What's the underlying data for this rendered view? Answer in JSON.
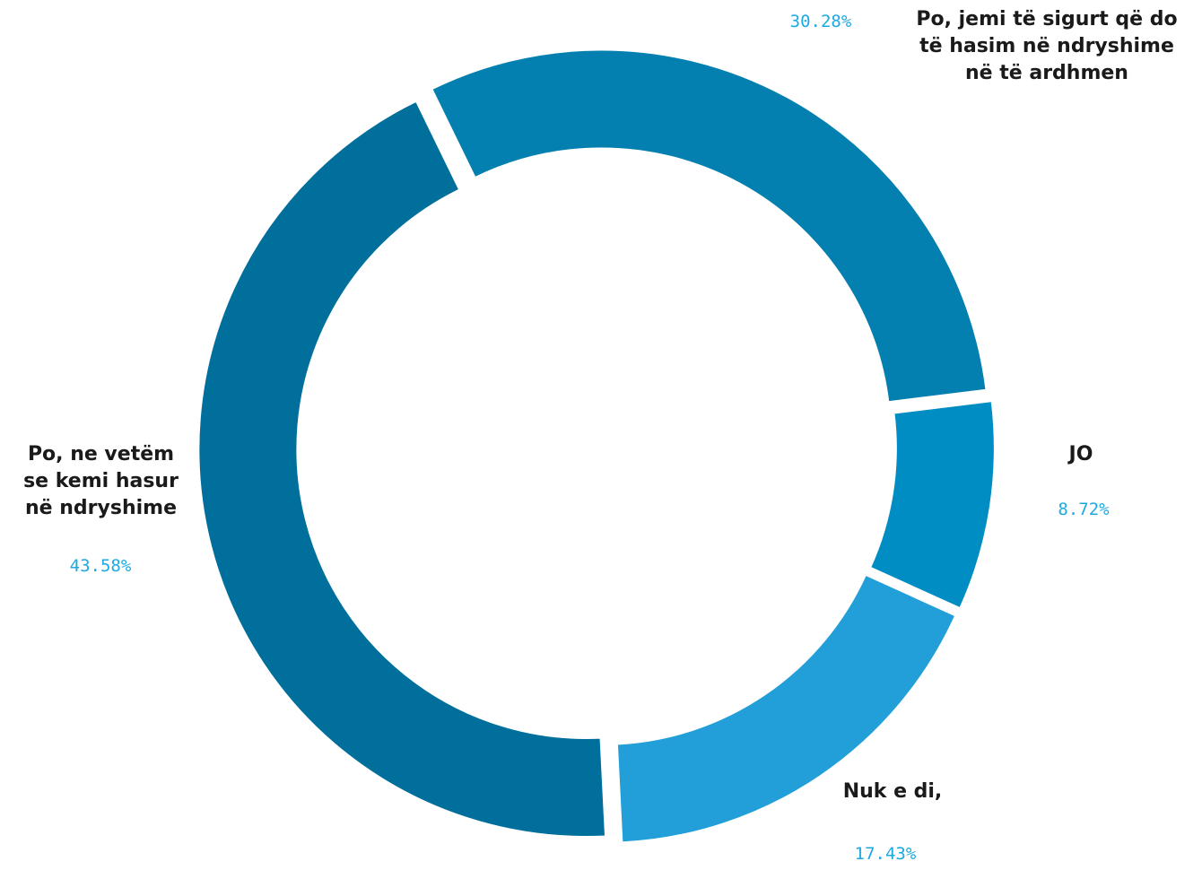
{
  "chart_data": {
    "type": "pie",
    "style": "donut",
    "slices": [
      {
        "key": "sure",
        "label_lines": [
          "Po, jemi të sigurt që do",
          "të hasim në ndryshime",
          "në të ardhmen"
        ],
        "value": 30.28,
        "value_label": "30.28%",
        "color": "#037FB0"
      },
      {
        "key": "no",
        "label_lines": [
          "JO"
        ],
        "value": 8.72,
        "value_label": "8.72%",
        "color": "#008DC4"
      },
      {
        "key": "dont-know",
        "label_lines": [
          "Nuk e di,"
        ],
        "value": 17.43,
        "value_label": "17.43%",
        "color": "#229FD9"
      },
      {
        "key": "already",
        "label_lines": [
          "Po, ne vetëm",
          "se kemi hasur",
          "në ndryshime"
        ],
        "value": 43.58,
        "value_label": "43.58%",
        "color": "#006F9C"
      }
    ],
    "label_color": "#1a1a1a",
    "value_label_color": "#1DA9E2",
    "legend": "none"
  }
}
